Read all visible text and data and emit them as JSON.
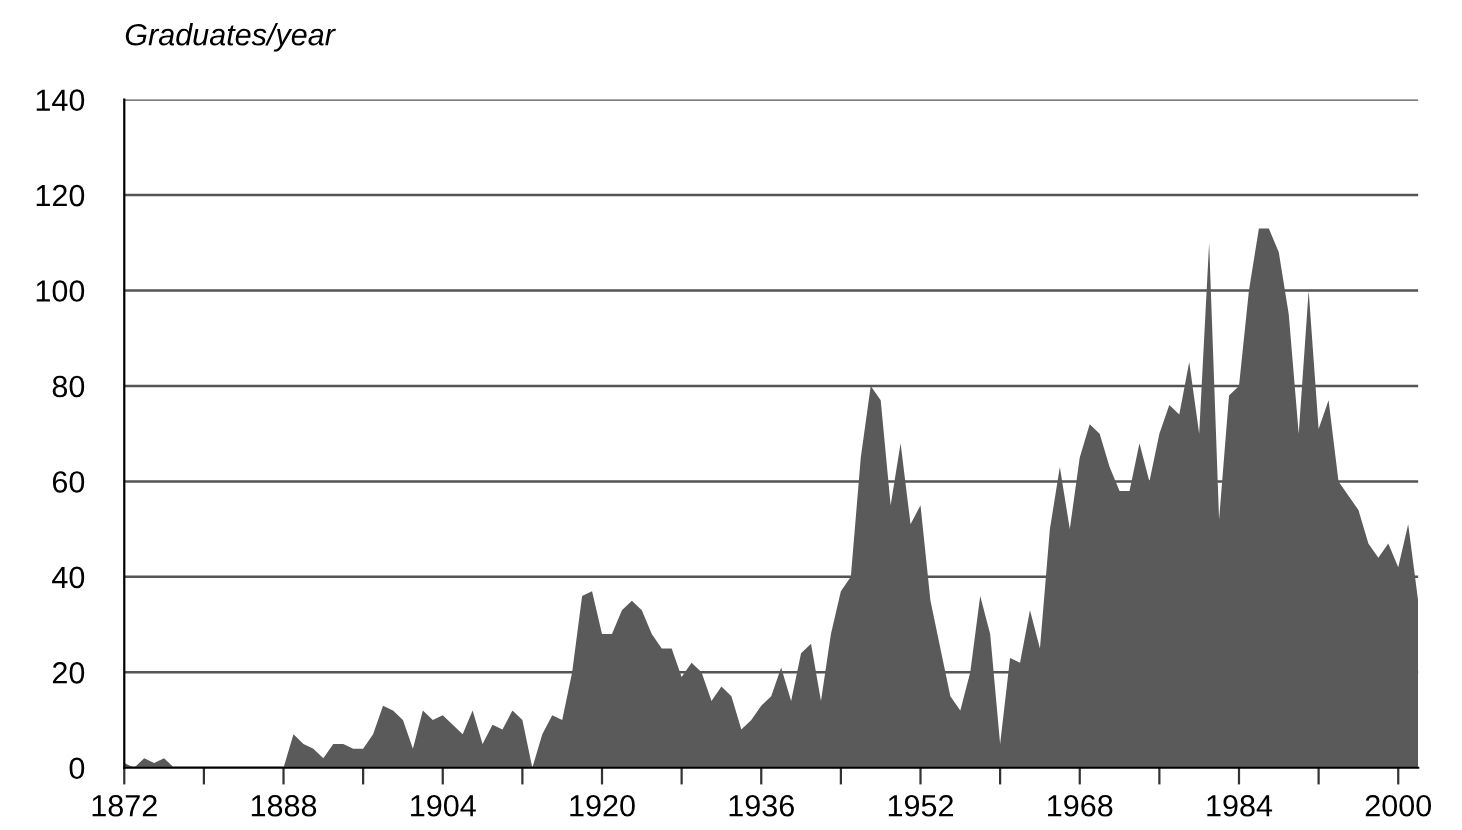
{
  "chart_data": {
    "type": "area",
    "ylabel": "Graduates/year",
    "x": [
      1872,
      1873,
      1874,
      1875,
      1876,
      1877,
      1878,
      1879,
      1880,
      1881,
      1882,
      1883,
      1884,
      1885,
      1886,
      1887,
      1888,
      1889,
      1890,
      1891,
      1892,
      1893,
      1894,
      1895,
      1896,
      1897,
      1898,
      1899,
      1900,
      1901,
      1902,
      1903,
      1904,
      1905,
      1906,
      1907,
      1908,
      1909,
      1910,
      1911,
      1912,
      1913,
      1914,
      1915,
      1916,
      1917,
      1918,
      1919,
      1920,
      1921,
      1922,
      1923,
      1924,
      1925,
      1926,
      1927,
      1928,
      1929,
      1930,
      1931,
      1932,
      1933,
      1934,
      1935,
      1936,
      1937,
      1938,
      1939,
      1940,
      1941,
      1942,
      1943,
      1944,
      1945,
      1946,
      1947,
      1948,
      1949,
      1950,
      1951,
      1952,
      1953,
      1954,
      1955,
      1956,
      1957,
      1958,
      1959,
      1960,
      1961,
      1962,
      1963,
      1964,
      1965,
      1966,
      1967,
      1968,
      1969,
      1970,
      1971,
      1972,
      1973,
      1974,
      1975,
      1976,
      1977,
      1978,
      1979,
      1980,
      1981,
      1982,
      1983,
      1984,
      1985,
      1986,
      1987,
      1988,
      1989,
      1990,
      1991,
      1992,
      1993,
      1994,
      1995,
      1996,
      1997,
      1998,
      1999,
      2000,
      2001,
      2002
    ],
    "series": [
      {
        "color": "#5a5a5a",
        "values": [
          1,
          0,
          2,
          1,
          2,
          0,
          0,
          0,
          0,
          0,
          0,
          0,
          0,
          0,
          0,
          0,
          0,
          7,
          5,
          4,
          2,
          5,
          5,
          4,
          4,
          7,
          13,
          12,
          10,
          4,
          12,
          10,
          11,
          9,
          7,
          12,
          5,
          9,
          8,
          12,
          10,
          0,
          7,
          11,
          10,
          20,
          36,
          37,
          28,
          28,
          33,
          35,
          33,
          28,
          25,
          25,
          19,
          22,
          20,
          14,
          17,
          15,
          8,
          10,
          13,
          15,
          21,
          14,
          24,
          26,
          14,
          28,
          37,
          40,
          65,
          80,
          77,
          55,
          68,
          51,
          55,
          35,
          25,
          15,
          12,
          20,
          36,
          28,
          5,
          23,
          22,
          33,
          25,
          50,
          63,
          50,
          65,
          72,
          70,
          63,
          58,
          58,
          68,
          60,
          70,
          76,
          74,
          85,
          70,
          110,
          52,
          78,
          80,
          100,
          113,
          113,
          108,
          95,
          70,
          100,
          71,
          77,
          60,
          57,
          54,
          47,
          44,
          47,
          42,
          51,
          35
        ]
      }
    ],
    "xlim": [
      1872,
      2002
    ],
    "xticks": [
      1872,
      {
        "value": 1880,
        "label": null
      },
      1888,
      {
        "value": 1896,
        "label": null
      },
      1904,
      {
        "value": 1912,
        "label": null
      },
      1920,
      {
        "value": 1928,
        "label": null
      },
      1936,
      {
        "value": 1944,
        "label": null
      },
      1952,
      {
        "value": 1960,
        "label": null
      },
      1968,
      {
        "value": 1976,
        "label": null
      },
      1984,
      {
        "value": 1992,
        "label": null
      },
      2000
    ],
    "ylim": [
      0,
      140
    ],
    "yticks": [
      0,
      20,
      40,
      60,
      80,
      100,
      120,
      140
    ],
    "grid": "y"
  }
}
